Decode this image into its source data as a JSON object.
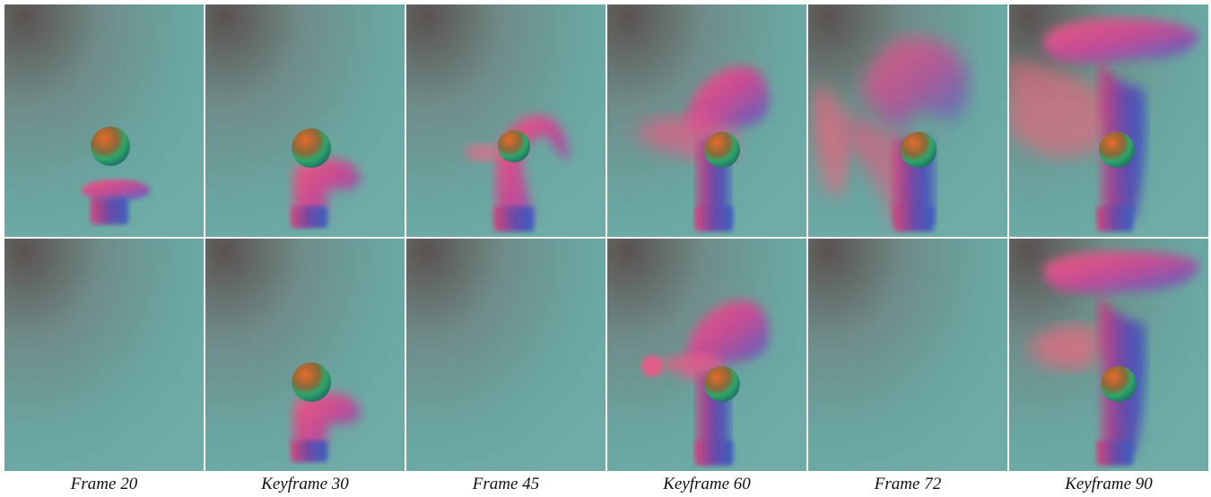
{
  "figure": {
    "captions": [
      "Frame 20",
      "Keyframe 30",
      "Frame 45",
      "Keyframe 60",
      "Frame 72",
      "Keyframe 90"
    ]
  }
}
